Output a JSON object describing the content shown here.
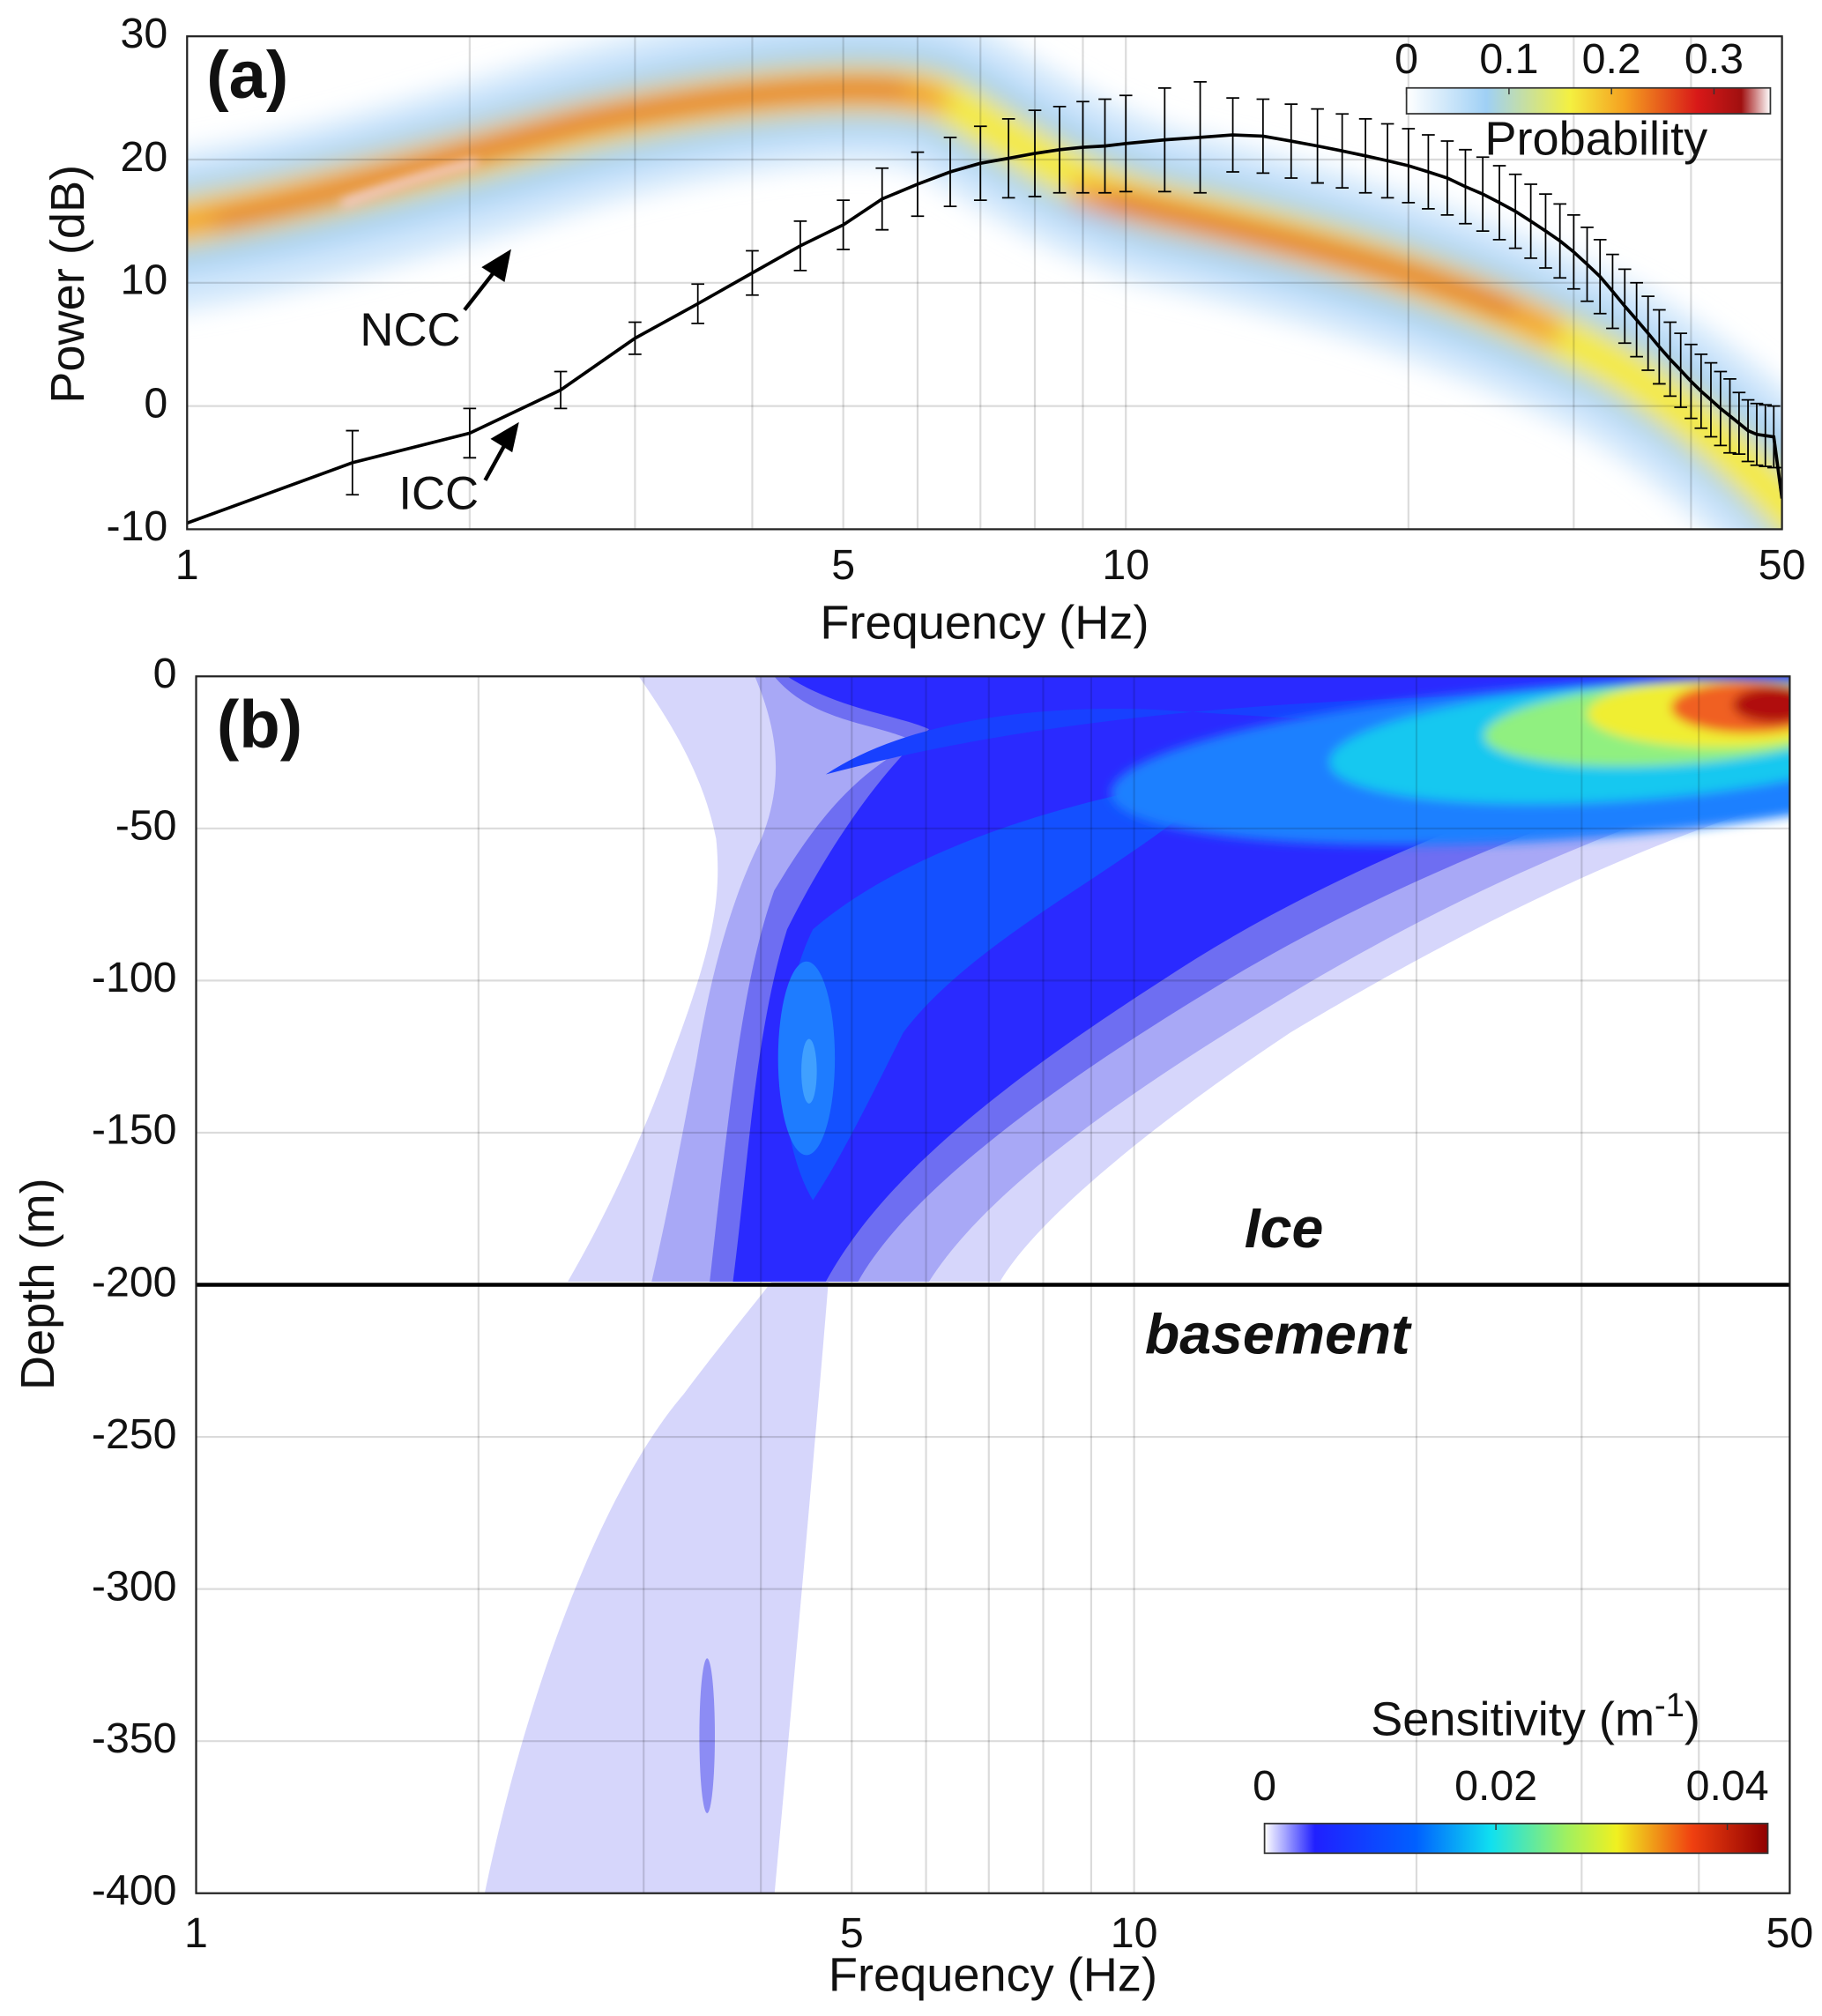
{
  "chart_data": [
    {
      "type": "line",
      "panel_label": "(a)",
      "xlabel": "Frequency (Hz)",
      "ylabel": "Power (dB)",
      "xscale": "log",
      "xlim": [
        1,
        50
      ],
      "ylim": [
        -10,
        30
      ],
      "xticks": [
        1,
        5,
        10,
        50
      ],
      "xgrid": [
        2,
        3,
        4,
        6,
        7,
        8,
        9,
        20,
        30,
        40
      ],
      "yticks": [
        -10,
        0,
        10,
        20,
        30
      ],
      "grid": true,
      "color": "#000000",
      "x": [
        1,
        1.5,
        2,
        2.5,
        3,
        3.5,
        4,
        4.5,
        5,
        5.5,
        6,
        6.5,
        7,
        7.5,
        8,
        8.5,
        9,
        9.5,
        10,
        11,
        12,
        13,
        14,
        15,
        16,
        17,
        18,
        19,
        20,
        21,
        22,
        23,
        24,
        25,
        26,
        27,
        28,
        29,
        30,
        31,
        32,
        33,
        34,
        35,
        36,
        37,
        38,
        39,
        40,
        41,
        42,
        43,
        44,
        45,
        46,
        47,
        48,
        49,
        50
      ],
      "values": [
        -9.5,
        -4.6,
        -2.2,
        1.3,
        5.5,
        8.3,
        10.8,
        13,
        14.7,
        16.8,
        18,
        19,
        19.7,
        20.1,
        20.5,
        20.8,
        21,
        21.1,
        21.3,
        21.6,
        21.8,
        22,
        21.9,
        21.5,
        21.1,
        20.7,
        20.3,
        19.9,
        19.5,
        19,
        18.5,
        17.8,
        17.2,
        16.5,
        15.8,
        15,
        14.2,
        13.4,
        12.5,
        11.5,
        10.5,
        9.3,
        8.1,
        7,
        5.9,
        4.8,
        3.8,
        2.9,
        2,
        1.2,
        0.5,
        -0.2,
        -0.8,
        -1.4,
        -2,
        -2.3,
        -2.4,
        -2.5,
        -7.5
      ],
      "errors": [
        null,
        2.6,
        2,
        1.5,
        1.3,
        1.6,
        1.8,
        2,
        2,
        2.5,
        2.6,
        2.8,
        3,
        3.2,
        3.5,
        3.5,
        3.7,
        3.8,
        3.9,
        4.2,
        4.5,
        3,
        3,
        3,
        3,
        3,
        3,
        3,
        3,
        3,
        3,
        3,
        3,
        3,
        3,
        3,
        3,
        3,
        3,
        3,
        3,
        3,
        3,
        3,
        3,
        3,
        3,
        3,
        3,
        3,
        3,
        3,
        3,
        2.5,
        2.5,
        2.5,
        2.5,
        2.5,
        2.5
      ],
      "annotations": [
        {
          "text": "NCC"
        },
        {
          "text": "ICC"
        }
      ],
      "colorbar": {
        "label": "Probability",
        "clim": [
          0,
          0.355
        ],
        "ticks": [
          0,
          0.1,
          0.2,
          0.3
        ]
      }
    },
    {
      "type": "contour",
      "panel_label": "(b)",
      "xlabel": "Frequency (Hz)",
      "ylabel": "Depth (m)",
      "xscale": "log",
      "xlim": [
        1,
        50
      ],
      "ylim": [
        -400,
        0
      ],
      "xticks": [
        1,
        5,
        10,
        50
      ],
      "xgrid": [
        2,
        3,
        4,
        6,
        7,
        8,
        9,
        20,
        30,
        40
      ],
      "yticks": [
        0,
        -50,
        -100,
        -150,
        -200,
        -250,
        -300,
        -350,
        -400
      ],
      "grid": true,
      "interface_depth": -200,
      "annotations": [
        {
          "text": "Ice"
        },
        {
          "text": "basement"
        }
      ],
      "colorbar": {
        "label": [
          "Sensitivity (m",
          "-1",
          ")"
        ],
        "clim": [
          0,
          0.0435
        ],
        "ticks": [
          0,
          0.02,
          0.04
        ]
      }
    }
  ]
}
